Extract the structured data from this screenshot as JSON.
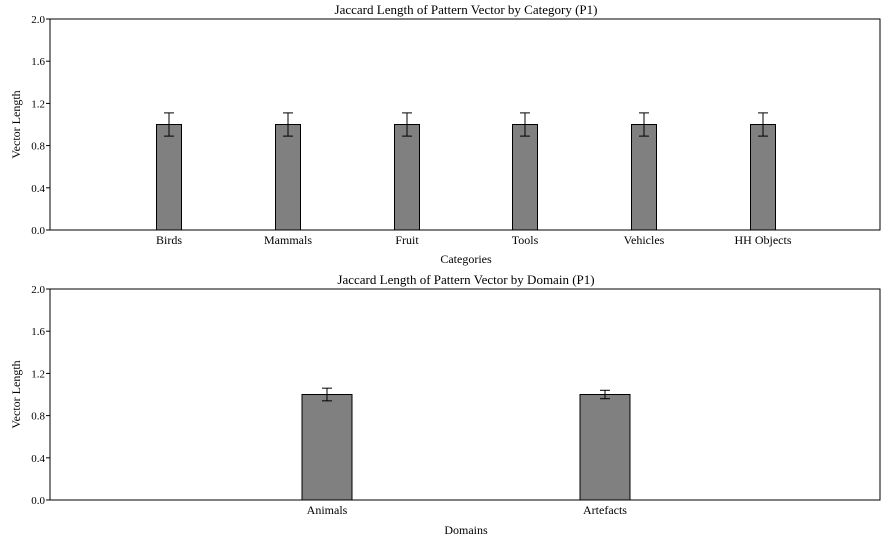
{
  "chart_data": [
    {
      "type": "bar",
      "title": "Jaccard Length of Pattern Vector by Category (P1)",
      "xlabel": "Categories",
      "ylabel": "Vector Length",
      "ylim": [
        0,
        2
      ],
      "yticks": [
        "0.0",
        "0.4",
        "0.8",
        "1.2",
        "1.6",
        "2.0"
      ],
      "categories": [
        "Birds",
        "Mammals",
        "Fruit",
        "Tools",
        "Vehicles",
        "HH Objects"
      ],
      "values": [
        1.0,
        1.0,
        1.0,
        1.0,
        1.0,
        1.0
      ],
      "errors": [
        0.11,
        0.11,
        0.11,
        0.11,
        0.11,
        0.11
      ],
      "bar_color": "#808080",
      "grid": false
    },
    {
      "type": "bar",
      "title": "Jaccard Length of Pattern Vector by Domain (P1)",
      "xlabel": "Domains",
      "ylabel": "Vector Length",
      "ylim": [
        0,
        2
      ],
      "yticks": [
        "0.0",
        "0.4",
        "0.8",
        "1.2",
        "1.6",
        "2.0"
      ],
      "categories": [
        "Animals",
        "Artefacts"
      ],
      "values": [
        1.0,
        1.0
      ],
      "errors": [
        0.06,
        0.04
      ],
      "bar_color": "#808080",
      "grid": false
    }
  ]
}
